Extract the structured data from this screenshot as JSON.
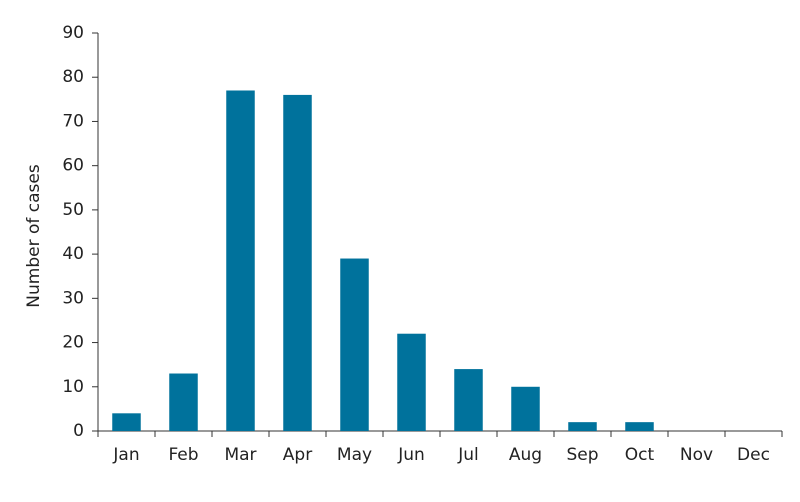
{
  "chart_data": {
    "type": "bar",
    "y_axis_label": "Number of cases",
    "categories": [
      "Jan",
      "Feb",
      "Mar",
      "Apr",
      "May",
      "Jun",
      "Jul",
      "Aug",
      "Sep",
      "Oct",
      "Nov",
      "Dec"
    ],
    "values": [
      4,
      13,
      77,
      76,
      39,
      22,
      14,
      10,
      2,
      2,
      0,
      0
    ],
    "color": "#00729c",
    "ylim": [
      0,
      90
    ],
    "yticks": [
      0,
      10,
      20,
      30,
      40,
      50,
      60,
      70,
      80,
      90
    ],
    "grid": false
  }
}
